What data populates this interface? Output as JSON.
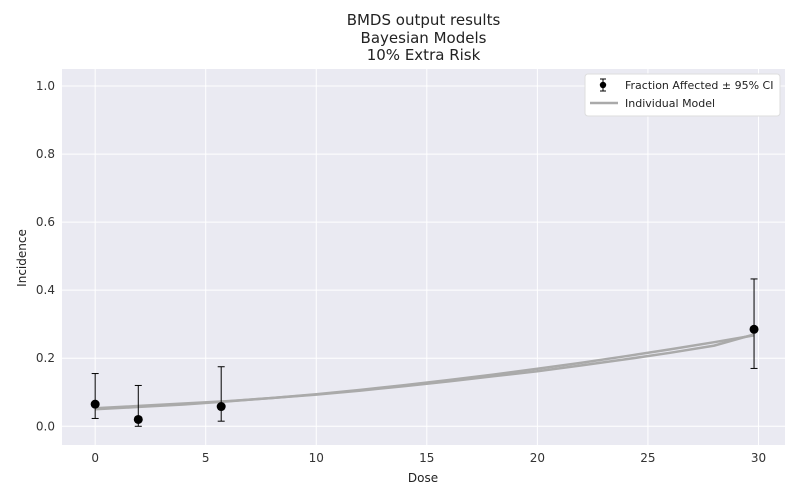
{
  "chart_data": {
    "type": "line",
    "title": [
      "BMDS output results",
      "Bayesian Models",
      "10% Extra Risk"
    ],
    "xlabel": "Dose",
    "ylabel": "Incidence",
    "xlim": [
      -1.5,
      31.2
    ],
    "ylim": [
      -0.055,
      1.05
    ],
    "xticks": [
      0,
      5,
      10,
      15,
      20,
      25,
      30
    ],
    "yticks": [
      0.0,
      0.2,
      0.4,
      0.6,
      0.8,
      1.0
    ],
    "ytick_labels": [
      "0.0",
      "0.2",
      "0.4",
      "0.6",
      "0.8",
      "1.0"
    ],
    "grid": true,
    "legend": {
      "placement": "top-right",
      "entries": [
        "Fraction Affected ± 95% CI",
        "Individual Model"
      ]
    },
    "observed": {
      "name": "Fraction Affected ± 95% CI",
      "x": [
        0,
        1.95,
        5.7,
        29.8
      ],
      "y": [
        0.065,
        0.02,
        0.058,
        0.285
      ],
      "lower": [
        0.023,
        0.0,
        0.015,
        0.17
      ],
      "upper": [
        0.155,
        0.12,
        0.175,
        0.433
      ],
      "color": "#000000"
    },
    "series": [
      {
        "name": "Individual Model",
        "x": [
          0,
          2,
          4,
          6,
          8,
          10,
          12,
          14,
          16,
          18,
          20,
          22,
          24,
          26,
          28,
          29.8
        ],
        "y": [
          0.05,
          0.057,
          0.064,
          0.073,
          0.083,
          0.094,
          0.107,
          0.121,
          0.136,
          0.152,
          0.169,
          0.187,
          0.206,
          0.226,
          0.247,
          0.267
        ],
        "color": "#aaaaaa"
      },
      {
        "name": "Individual Model",
        "x": [
          0,
          2,
          4,
          6,
          8,
          10,
          12,
          14,
          16,
          18,
          20,
          22,
          24,
          26,
          28,
          29.8
        ],
        "y": [
          0.053,
          0.06,
          0.067,
          0.074,
          0.083,
          0.093,
          0.105,
          0.118,
          0.132,
          0.147,
          0.162,
          0.179,
          0.197,
          0.216,
          0.237,
          0.27
        ],
        "color": "#aaaaaa"
      }
    ],
    "colors": {
      "plot_background": "#eaeaf2",
      "grid": "#ffffff",
      "model_line": "#aaaaaa",
      "points": "#000000"
    }
  }
}
